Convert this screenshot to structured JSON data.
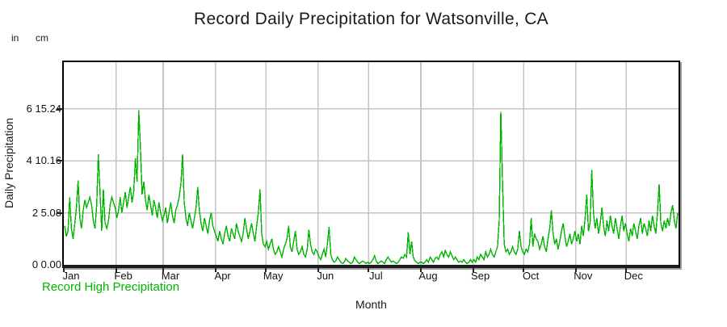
{
  "title": "Record Daily Precipitation for Watsonville, CA",
  "unit_headers": {
    "left": "in",
    "right": "cm"
  },
  "y_axis_title": "Daily Precipitation",
  "x_axis_title": "Month",
  "legend": {
    "label": "Record High Precipitation"
  },
  "colors": {
    "line": "#00b400",
    "legend_text": "#00b400",
    "grid": "#c4c4c4",
    "axis": "#000000",
    "tick": "#222222",
    "text": "#1a1a1a"
  },
  "chart_data": {
    "type": "line",
    "title": "Record Daily Precipitation for Watsonville, CA",
    "xlabel": "Month",
    "ylabel": "Daily Precipitation",
    "grid": true,
    "legend_position": "bottom-left",
    "x_tick_labels": [
      "Jan",
      "Feb",
      "Mar",
      "Apr",
      "May",
      "Jun",
      "Jul",
      "Aug",
      "Sep",
      "Oct",
      "Nov",
      "Dec"
    ],
    "month_days": [
      31,
      28,
      31,
      30,
      31,
      30,
      31,
      31,
      30,
      31,
      30,
      31
    ],
    "y_ticks": [
      {
        "in": "0",
        "cm": "0.00",
        "value_in": 0
      },
      {
        "in": "2",
        "cm": "5.08",
        "value_in": 2
      },
      {
        "in": "4",
        "cm": "10.16",
        "value_in": 4
      },
      {
        "in": "6",
        "cm": "15.24",
        "value_in": 6
      }
    ],
    "ylim_in": [
      0,
      7.8
    ],
    "series": [
      {
        "name": "Record High Precipitation",
        "color": "#00b400",
        "unit": "inches per day",
        "values": [
          1.5,
          1.1,
          1.3,
          2.6,
          1.4,
          1.0,
          1.6,
          2.2,
          3.25,
          1.8,
          1.4,
          2.1,
          2.5,
          2.2,
          2.4,
          2.6,
          2.3,
          1.7,
          1.4,
          2.3,
          4.25,
          2.8,
          1.3,
          2.9,
          1.6,
          1.4,
          1.7,
          2.3,
          2.6,
          2.4,
          2.2,
          1.8,
          2.1,
          2.6,
          2.0,
          2.4,
          2.8,
          2.2,
          2.6,
          3.0,
          2.4,
          2.8,
          4.1,
          3.2,
          5.95,
          4.5,
          2.7,
          3.2,
          2.5,
          2.1,
          2.7,
          2.3,
          1.9,
          2.5,
          2.2,
          1.8,
          2.4,
          2.0,
          1.7,
          1.9,
          2.2,
          1.6,
          2.0,
          2.4,
          1.9,
          1.6,
          2.1,
          2.3,
          2.6,
          3.1,
          4.25,
          2.4,
          1.8,
          1.5,
          2.0,
          1.7,
          1.4,
          1.8,
          2.2,
          3.0,
          2.1,
          1.6,
          1.3,
          1.8,
          1.5,
          1.2,
          1.7,
          2.0,
          1.5,
          1.3,
          1.1,
          0.9,
          1.3,
          1.0,
          0.8,
          1.2,
          1.5,
          1.1,
          0.9,
          1.4,
          1.2,
          1.0,
          1.6,
          1.3,
          1.1,
          0.9,
          1.2,
          1.8,
          1.4,
          1.0,
          1.3,
          1.6,
          1.2,
          0.9,
          1.5,
          2.0,
          2.9,
          1.2,
          0.8,
          0.7,
          0.9,
          0.6,
          0.8,
          1.0,
          0.6,
          0.4,
          0.5,
          0.7,
          0.5,
          0.3,
          0.6,
          0.8,
          1.0,
          1.5,
          0.7,
          0.5,
          0.9,
          1.3,
          0.6,
          0.4,
          0.5,
          0.7,
          0.4,
          0.3,
          0.6,
          1.35,
          0.8,
          0.5,
          0.4,
          0.6,
          0.5,
          0.3,
          0.2,
          0.4,
          0.6,
          0.3,
          0.8,
          1.45,
          0.4,
          0.2,
          0.1,
          0.15,
          0.3,
          0.2,
          0.1,
          0.05,
          0.1,
          0.25,
          0.15,
          0.1,
          0.05,
          0.1,
          0.3,
          0.2,
          0.1,
          0.05,
          0.1,
          0.15,
          0.1,
          0.05,
          0.1,
          0.05,
          0.1,
          0.2,
          0.35,
          0.15,
          0.05,
          0.1,
          0.15,
          0.1,
          0.05,
          0.2,
          0.3,
          0.2,
          0.1,
          0.15,
          0.1,
          0.05,
          0.1,
          0.2,
          0.3,
          0.25,
          0.4,
          0.3,
          1.25,
          0.4,
          0.9,
          0.3,
          0.15,
          0.1,
          0.05,
          0.1,
          0.1,
          0.05,
          0.1,
          0.2,
          0.1,
          0.3,
          0.2,
          0.1,
          0.25,
          0.3,
          0.2,
          0.4,
          0.5,
          0.3,
          0.55,
          0.4,
          0.3,
          0.5,
          0.35,
          0.2,
          0.3,
          0.2,
          0.1,
          0.15,
          0.1,
          0.2,
          0.1,
          0.05,
          0.1,
          0.2,
          0.1,
          0.2,
          0.1,
          0.3,
          0.2,
          0.4,
          0.3,
          0.2,
          0.5,
          0.3,
          0.4,
          0.6,
          0.4,
          0.3,
          0.5,
          0.7,
          1.7,
          5.9,
          3.2,
          0.8,
          0.5,
          0.6,
          0.4,
          0.5,
          0.7,
          0.5,
          0.4,
          0.6,
          1.3,
          0.7,
          0.5,
          0.4,
          0.6,
          0.5,
          0.8,
          1.8,
          0.7,
          1.2,
          1.0,
          0.9,
          0.6,
          0.8,
          1.1,
          0.7,
          0.5,
          1.0,
          1.4,
          2.1,
          1.2,
          0.8,
          1.0,
          0.6,
          0.9,
          1.3,
          1.6,
          1.1,
          0.7,
          0.9,
          1.2,
          0.8,
          1.0,
          1.3,
          0.9,
          1.2,
          0.8,
          1.5,
          1.1,
          1.8,
          2.7,
          1.3,
          1.6,
          3.65,
          2.0,
          1.4,
          1.8,
          1.2,
          1.6,
          2.2,
          1.5,
          1.1,
          1.7,
          1.3,
          1.9,
          1.5,
          1.2,
          1.8,
          1.4,
          1.0,
          1.5,
          1.9,
          1.3,
          1.6,
          1.2,
          0.9,
          1.4,
          1.1,
          1.6,
          1.3,
          1.0,
          1.5,
          1.8,
          1.2,
          1.6,
          1.4,
          1.1,
          1.7,
          1.3,
          1.9,
          1.5,
          1.2,
          2.0,
          3.1,
          1.6,
          1.3,
          1.7,
          1.4,
          1.8,
          1.5,
          2.0,
          2.3,
          1.7,
          1.4,
          2.0
        ]
      }
    ]
  }
}
